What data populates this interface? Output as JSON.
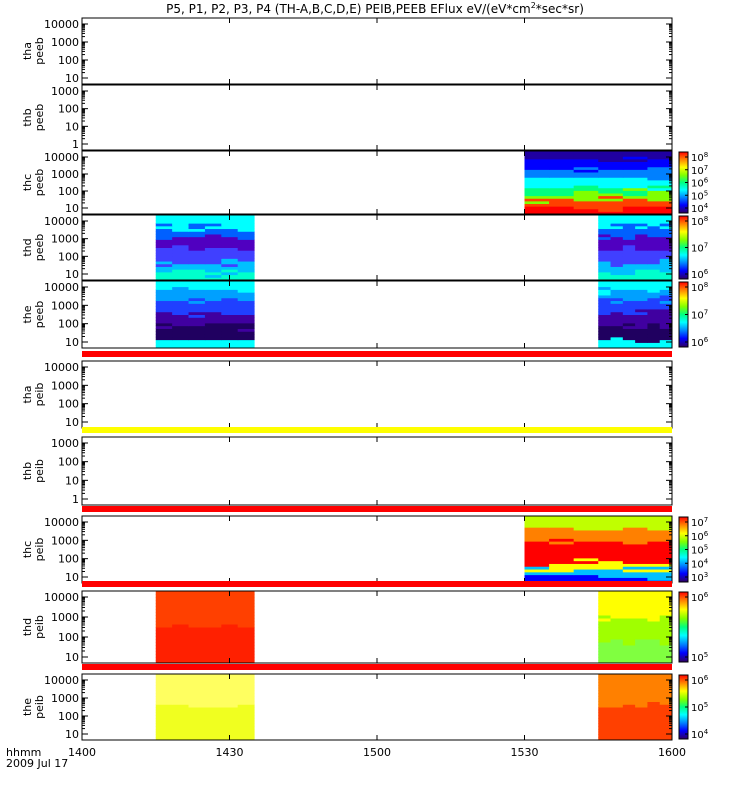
{
  "chart_data": {
    "type": "heatmap",
    "title": "P5, P1, P2, P3, P4 (TH-A,B,C,D,E) PEIB,PEEB EFlux eV/(eV*cm",
    "title_sup": "2",
    "title_tail": "*sec*sr)",
    "x_label_row1": "hhmm",
    "x_label_row2": "2009 Jul 17",
    "x_ticks": [
      "1400",
      "1430",
      "1500",
      "1530",
      "1600"
    ],
    "x_range": [
      "1400",
      "1600"
    ],
    "panels": [
      {
        "label1": "tha",
        "label2": "peeb",
        "yticks": [
          "10000",
          "1000",
          "100",
          "10"
        ],
        "ylim": [
          10,
          20000
        ],
        "scale": "log",
        "segments": [],
        "colorbar": null,
        "bar_above": null
      },
      {
        "label1": "thb",
        "label2": "peeb",
        "yticks": [
          "1000",
          "100",
          "10",
          "1"
        ],
        "ylim": [
          1,
          1500
        ],
        "scale": "log",
        "segments": [],
        "colorbar": null,
        "bar_above": null
      },
      {
        "label1": "thc",
        "label2": "peeb",
        "yticks": [
          "10000",
          "1000",
          "100",
          "10"
        ],
        "ylim": [
          8,
          20000
        ],
        "scale": "log",
        "segments": [
          {
            "start": "1530",
            "end": "1600",
            "palette": "thc_peeb"
          }
        ],
        "colorbar": [
          "10",
          "10",
          "10",
          "10",
          "10"
        ],
        "colorbar_exp": [
          "8",
          "7",
          "6",
          "5",
          "4"
        ],
        "bar_above": null
      },
      {
        "label1": "thd",
        "label2": "peeb",
        "yticks": [
          "10000",
          "1000",
          "100",
          "10"
        ],
        "ylim": [
          6,
          20000
        ],
        "scale": "log",
        "segments": [
          {
            "start": "1415",
            "end": "1435",
            "palette": "thd_peeb"
          },
          {
            "start": "1545",
            "end": "1600",
            "palette": "thd_peeb"
          }
        ],
        "colorbar": [
          "10",
          "10",
          "10"
        ],
        "colorbar_exp": [
          "8",
          "7",
          "6"
        ],
        "bar_above": null
      },
      {
        "label1": "the",
        "label2": "peeb",
        "yticks": [
          "10000",
          "1000",
          "100",
          "10"
        ],
        "ylim": [
          6,
          20000
        ],
        "scale": "log",
        "segments": [
          {
            "start": "1415",
            "end": "1435",
            "palette": "the_peeb"
          },
          {
            "start": "1545",
            "end": "1600",
            "palette": "the_peeb"
          }
        ],
        "colorbar": [
          "10",
          "10",
          "10"
        ],
        "colorbar_exp": [
          "8",
          "7",
          "6"
        ],
        "bar_above": null
      },
      {
        "label1": "tha",
        "label2": "peib",
        "yticks": [
          "10000",
          "1000",
          "100",
          "10"
        ],
        "ylim": [
          6,
          20000
        ],
        "scale": "log",
        "segments": [],
        "colorbar": null,
        "bar_above": "#ff0000"
      },
      {
        "label1": "thb",
        "label2": "peib",
        "yticks": [
          "1000",
          "100",
          "10",
          "1"
        ],
        "ylim": [
          0.7,
          1500
        ],
        "scale": "log",
        "segments": [],
        "colorbar": null,
        "bar_above": "#ffff00"
      },
      {
        "label1": "thc",
        "label2": "peib",
        "yticks": [
          "10000",
          "1000",
          "100",
          "10"
        ],
        "ylim": [
          6,
          20000
        ],
        "scale": "log",
        "segments": [
          {
            "start": "1530",
            "end": "1600",
            "palette": "thc_peib"
          }
        ],
        "colorbar": [
          "10",
          "10",
          "10",
          "10",
          "10"
        ],
        "colorbar_exp": [
          "7",
          "6",
          "5",
          "4",
          "3"
        ],
        "bar_above": "#ff0000"
      },
      {
        "label1": "thd",
        "label2": "peib",
        "yticks": [
          "10000",
          "1000",
          "100",
          "10"
        ],
        "ylim": [
          6,
          20000
        ],
        "scale": "log",
        "segments": [
          {
            "start": "1415",
            "end": "1435",
            "palette": "thd_peib"
          },
          {
            "start": "1545",
            "end": "1600",
            "palette": "thd_peib_b"
          }
        ],
        "colorbar": [
          "10",
          "10"
        ],
        "colorbar_exp": [
          "6",
          "5"
        ],
        "bar_above": "#ff0000"
      },
      {
        "label1": "the",
        "label2": "peib",
        "yticks": [
          "10000",
          "1000",
          "100",
          "10"
        ],
        "ylim": [
          6,
          20000
        ],
        "scale": "log",
        "segments": [
          {
            "start": "1415",
            "end": "1435",
            "palette": "the_peib"
          },
          {
            "start": "1545",
            "end": "1600",
            "palette": "the_peib_b"
          }
        ],
        "colorbar": [
          "10",
          "10",
          "10"
        ],
        "colorbar_exp": [
          "6",
          "5",
          "4"
        ],
        "bar_above": "#ff0000"
      }
    ],
    "colors": {
      "rainbow": [
        "#ff0000",
        "#ff8000",
        "#ffff00",
        "#80ff00",
        "#00ff80",
        "#00ffff",
        "#0080ff",
        "#0000ff",
        "#400080",
        "#200040"
      ]
    }
  }
}
